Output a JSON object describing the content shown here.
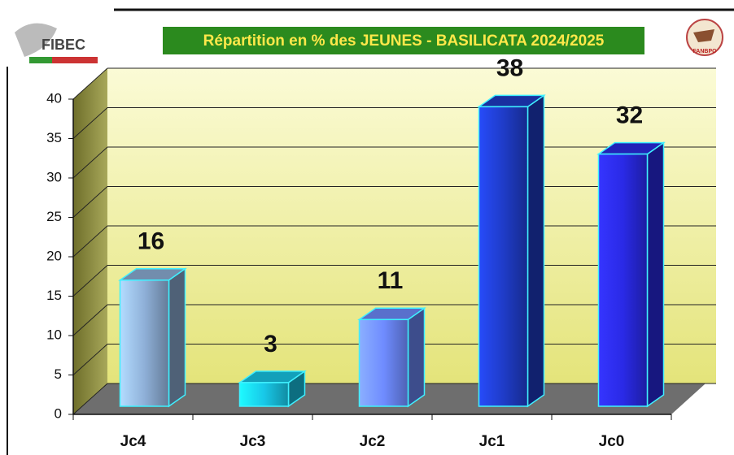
{
  "chart_data": {
    "type": "bar3d",
    "title": "Répartition en % des JEUNES - BASILICATA 2024/2025",
    "logos": [
      "FIBEC",
      "FANBPO"
    ],
    "categories": [
      "Jc4",
      "Jc3",
      "Jc2",
      "Jc1",
      "Jc0"
    ],
    "values": [
      16,
      3,
      11,
      38,
      32
    ],
    "colors": [
      "#8fb0d8",
      "#18c8e8",
      "#6f8cff",
      "#1f3cc8",
      "#2a2ae6"
    ],
    "ylim": [
      0,
      40
    ],
    "yticks": [
      0,
      5,
      10,
      15,
      20,
      25,
      30,
      35,
      40
    ],
    "grid": true
  }
}
